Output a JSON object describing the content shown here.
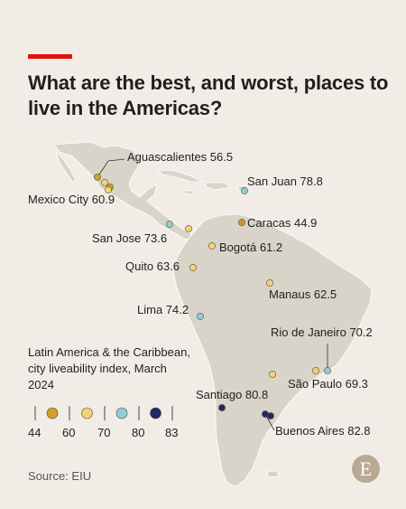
{
  "header": {
    "title": "What are the best, and worst, places to live in the Americas?",
    "accent_color": "#e3120b"
  },
  "map": {
    "land_color": "#d9d4c9",
    "cities": [
      {
        "name": "Aguascalientes",
        "value": "56.5",
        "color": "#d4a02b"
      },
      {
        "name": "Mexico City",
        "value": "60.9",
        "color": "#d4a02b"
      },
      {
        "name": "San Jose",
        "value": "73.6",
        "color": "#8ccfd9"
      },
      {
        "name": "San Juan",
        "value": "78.8",
        "color": "#8ccfd9"
      },
      {
        "name": "Caracas",
        "value": "44.9",
        "color": "#cf9a2a"
      },
      {
        "name": "Bogotá",
        "value": "61.2",
        "color": "#f3d27a"
      },
      {
        "name": "Quito",
        "value": "63.6",
        "color": "#f3d27a"
      },
      {
        "name": "Manaus",
        "value": "62.5",
        "color": "#f3d27a"
      },
      {
        "name": "Lima",
        "value": "74.2",
        "color": "#8ccfd9"
      },
      {
        "name": "Rio de Janeiro",
        "value": "70.2",
        "color": "#8ccfd9"
      },
      {
        "name": "São Paulo",
        "value": "69.3",
        "color": "#f3d27a"
      },
      {
        "name": "Santiago",
        "value": "80.8",
        "color": "#1b2a6b"
      },
      {
        "name": "Buenos Aires",
        "value": "82.8",
        "color": "#1b2a6b"
      }
    ]
  },
  "legend": {
    "title": "Latin America & the Caribbean, city liveability index, March 2024",
    "ticks": [
      "44",
      "60",
      "70",
      "80",
      "83"
    ],
    "colors": [
      "#d4a02b",
      "#f3d27a",
      "#8ccfd9",
      "#1b2a6b"
    ]
  },
  "footer": {
    "source": "Source: EIU",
    "logo_letter": "E",
    "logo_color": "#b8aa92"
  }
}
